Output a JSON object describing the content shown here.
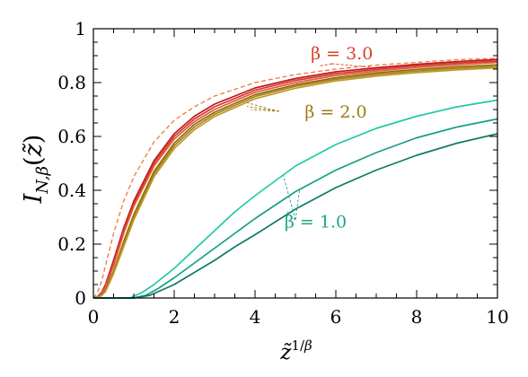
{
  "chart_data": {
    "type": "line",
    "xlabel": "z̃^{1/β}",
    "ylabel": "I_{N,β}(z̃)",
    "xlim": [
      0,
      10
    ],
    "ylim": [
      0,
      1
    ],
    "x_ticks": [
      "0",
      "2",
      "4",
      "6",
      "8",
      "10"
    ],
    "y_ticks": [
      "0",
      "0.2",
      "0.4",
      "0.6",
      "0.8",
      "1"
    ],
    "grid": false,
    "minor_ticks": true,
    "annotations": [
      {
        "label": "β = 3.0",
        "color": "#d9402b"
      },
      {
        "label": "β = 2.0",
        "color": "#a07a12"
      },
      {
        "label": "β = 1.0",
        "color": "#1aa58a"
      }
    ],
    "series": [
      {
        "group": "β = 3.0",
        "style": "dashed",
        "color": "#ee7a3a",
        "x": [
          0,
          0.1,
          0.2,
          0.3,
          0.5,
          0.75,
          1.0,
          1.5,
          2.0,
          2.5,
          3.0,
          4.0,
          5.0,
          6.0,
          7.0,
          8.0,
          9.0,
          10.0
        ],
        "y": [
          0,
          0.02,
          0.06,
          0.12,
          0.24,
          0.36,
          0.45,
          0.58,
          0.66,
          0.71,
          0.75,
          0.8,
          0.83,
          0.85,
          0.865,
          0.875,
          0.885,
          0.89
        ]
      },
      {
        "group": "β = 3.0",
        "style": "solid",
        "color": "#c0171d",
        "x": [
          0,
          0.1,
          0.2,
          0.3,
          0.5,
          0.75,
          1.0,
          1.5,
          2.0,
          2.5,
          3.0,
          4.0,
          5.0,
          6.0,
          7.0,
          8.0,
          9.0,
          10.0
        ],
        "y": [
          0,
          0.005,
          0.02,
          0.05,
          0.14,
          0.26,
          0.36,
          0.51,
          0.61,
          0.675,
          0.72,
          0.78,
          0.815,
          0.84,
          0.855,
          0.868,
          0.878,
          0.886
        ]
      },
      {
        "group": "β = 3.0",
        "style": "solid",
        "color": "#d13a2a",
        "x": [
          0,
          0.1,
          0.2,
          0.3,
          0.5,
          0.75,
          1.0,
          1.5,
          2.0,
          2.5,
          3.0,
          4.0,
          5.0,
          6.0,
          7.0,
          8.0,
          9.0,
          10.0
        ],
        "y": [
          0,
          0.005,
          0.018,
          0.045,
          0.13,
          0.25,
          0.35,
          0.5,
          0.6,
          0.665,
          0.71,
          0.772,
          0.808,
          0.833,
          0.849,
          0.862,
          0.872,
          0.88
        ]
      },
      {
        "group": "β = 3.0",
        "style": "solid",
        "color": "#e35b3c",
        "x": [
          0,
          0.1,
          0.2,
          0.3,
          0.5,
          0.75,
          1.0,
          1.5,
          2.0,
          2.5,
          3.0,
          4.0,
          5.0,
          6.0,
          7.0,
          8.0,
          9.0,
          10.0
        ],
        "y": [
          0,
          0.004,
          0.016,
          0.04,
          0.12,
          0.24,
          0.34,
          0.49,
          0.59,
          0.655,
          0.7,
          0.764,
          0.8,
          0.826,
          0.843,
          0.856,
          0.866,
          0.875
        ]
      },
      {
        "group": "β = 2.0",
        "style": "solid",
        "color": "#8c6a10",
        "x": [
          0,
          0.1,
          0.2,
          0.3,
          0.5,
          0.75,
          1.0,
          1.5,
          2.0,
          2.5,
          3.0,
          4.0,
          5.0,
          6.0,
          7.0,
          8.0,
          9.0,
          10.0
        ],
        "y": [
          0,
          0.002,
          0.01,
          0.03,
          0.1,
          0.21,
          0.31,
          0.47,
          0.575,
          0.645,
          0.69,
          0.755,
          0.792,
          0.818,
          0.836,
          0.849,
          0.859,
          0.866
        ]
      },
      {
        "group": "β = 2.0",
        "style": "solid",
        "color": "#a88416",
        "x": [
          0,
          0.1,
          0.2,
          0.3,
          0.5,
          0.75,
          1.0,
          1.5,
          2.0,
          2.5,
          3.0,
          4.0,
          5.0,
          6.0,
          7.0,
          8.0,
          9.0,
          10.0
        ],
        "y": [
          0,
          0.002,
          0.009,
          0.027,
          0.095,
          0.2,
          0.3,
          0.46,
          0.565,
          0.635,
          0.682,
          0.748,
          0.786,
          0.812,
          0.83,
          0.843,
          0.853,
          0.86
        ]
      },
      {
        "group": "β = 2.0",
        "style": "solid",
        "color": "#c29a2a",
        "x": [
          0,
          0.1,
          0.2,
          0.3,
          0.5,
          0.75,
          1.0,
          1.5,
          2.0,
          2.5,
          3.0,
          4.0,
          5.0,
          6.0,
          7.0,
          8.0,
          9.0,
          10.0
        ],
        "y": [
          0,
          0.002,
          0.008,
          0.024,
          0.09,
          0.19,
          0.29,
          0.45,
          0.555,
          0.625,
          0.674,
          0.74,
          0.779,
          0.806,
          0.824,
          0.837,
          0.847,
          0.855
        ]
      },
      {
        "group": "β = 1.0",
        "style": "solid",
        "color": "#22c9a5",
        "x": [
          0,
          0.5,
          0.9,
          1.2,
          1.5,
          2.0,
          2.5,
          3.0,
          3.5,
          4.0,
          5.0,
          6.0,
          7.0,
          8.0,
          9.0,
          10.0
        ],
        "y": [
          0,
          0,
          0,
          0.02,
          0.05,
          0.11,
          0.18,
          0.25,
          0.32,
          0.38,
          0.49,
          0.57,
          0.63,
          0.675,
          0.71,
          0.735
        ]
      },
      {
        "group": "β = 1.0",
        "style": "solid",
        "color": "#189e86",
        "x": [
          0,
          0.5,
          1.0,
          1.3,
          1.6,
          2.0,
          2.5,
          3.0,
          3.5,
          4.0,
          5.0,
          6.0,
          7.0,
          8.0,
          9.0,
          10.0
        ],
        "y": [
          0,
          0,
          0,
          0.01,
          0.035,
          0.075,
          0.13,
          0.185,
          0.24,
          0.295,
          0.395,
          0.475,
          0.54,
          0.595,
          0.635,
          0.665
        ]
      },
      {
        "group": "β = 1.0",
        "style": "solid",
        "color": "#117a68",
        "x": [
          0,
          0.5,
          1.0,
          1.4,
          1.7,
          2.0,
          2.5,
          3.0,
          3.5,
          4.0,
          5.0,
          6.0,
          7.0,
          8.0,
          9.0,
          10.0
        ],
        "y": [
          0,
          0,
          0,
          0.01,
          0.03,
          0.05,
          0.095,
          0.14,
          0.19,
          0.235,
          0.33,
          0.41,
          0.475,
          0.53,
          0.575,
          0.61
        ]
      }
    ]
  }
}
